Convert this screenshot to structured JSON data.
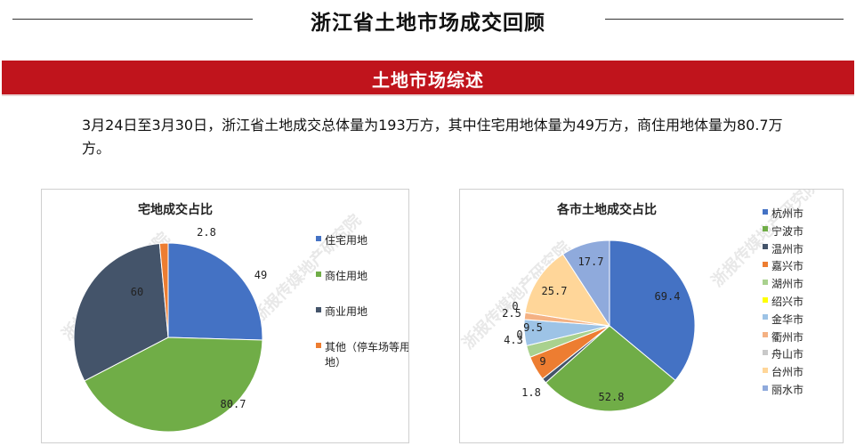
{
  "header": {
    "title": "浙江省土地市场成交回顾",
    "banner": "土地市场综述"
  },
  "summary": "3月24日至3月30日，浙江省土地成交总体量为193万方，其中住宅用地体量为49万方，商住用地体量为80.7万方。",
  "watermark": "浙报传媒地产研究院",
  "chart_data": [
    {
      "type": "pie",
      "title": "宅地成交占比",
      "categories": [
        "住宅用地",
        "商住用地",
        "商业用地",
        "其他（停车场等用地）"
      ],
      "values": [
        49,
        80.7,
        60,
        2.8
      ],
      "value_labels": [
        "49",
        "80.7",
        "60",
        "2.8"
      ],
      "colors": [
        "#4472c4",
        "#70ad47",
        "#44546a",
        "#ed7d31"
      ],
      "legend_position": "right"
    },
    {
      "type": "pie",
      "title": "各市土地成交占比",
      "categories": [
        "杭州市",
        "宁波市",
        "温州市",
        "嘉兴市",
        "湖州市",
        "绍兴市",
        "金华市",
        "衢州市",
        "舟山市",
        "台州市",
        "丽水市"
      ],
      "values": [
        69.4,
        52.8,
        1.8,
        9,
        4.3,
        0,
        9.5,
        2.5,
        0,
        25.7,
        17.7
      ],
      "value_labels": [
        "69.4",
        "52.8",
        "1.8",
        "9",
        "4.3",
        "0",
        "9.5",
        "2.5",
        "0",
        "25.7",
        "17.7"
      ],
      "colors": [
        "#4472c4",
        "#70ad47",
        "#44546a",
        "#ed7d31",
        "#a9d18e",
        "#ffff00",
        "#9dc3e6",
        "#f4b183",
        "#c9c9c9",
        "#ffd699",
        "#8faadc"
      ],
      "legend_position": "right"
    }
  ]
}
